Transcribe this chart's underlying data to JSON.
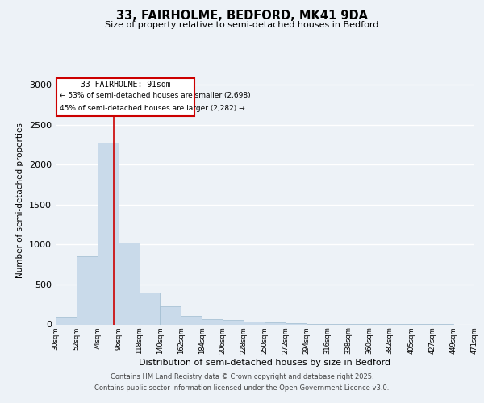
{
  "title_line1": "33, FAIRHOLME, BEDFORD, MK41 9DA",
  "title_line2": "Size of property relative to semi-detached houses in Bedford",
  "xlabel": "Distribution of semi-detached houses by size in Bedford",
  "ylabel": "Number of semi-detached properties",
  "annotation_line1": "33 FAIRHOLME: 91sqm",
  "annotation_line2": "← 53% of semi-detached houses are smaller (2,698)",
  "annotation_line3": "45% of semi-detached houses are larger (2,282) →",
  "property_size": 91,
  "bin_edges": [
    30,
    52,
    74,
    96,
    118,
    140,
    162,
    184,
    206,
    228,
    250,
    272,
    294,
    316,
    338,
    360,
    382,
    405,
    427,
    449,
    471
  ],
  "bin_labels": [
    "30sqm",
    "52sqm",
    "74sqm",
    "96sqm",
    "118sqm",
    "140sqm",
    "162sqm",
    "184sqm",
    "206sqm",
    "228sqm",
    "250sqm",
    "272sqm",
    "294sqm",
    "316sqm",
    "338sqm",
    "360sqm",
    "382sqm",
    "405sqm",
    "427sqm",
    "449sqm",
    "471sqm"
  ],
  "counts": [
    100,
    850,
    2270,
    1020,
    400,
    230,
    110,
    70,
    55,
    35,
    25,
    15,
    10,
    5,
    5,
    3,
    2,
    1,
    1,
    0
  ],
  "bar_color": "#c9daea",
  "bar_edge_color": "#a0bcd0",
  "vline_color": "#cc0000",
  "vline_x": 91,
  "ylim": [
    0,
    3100
  ],
  "yticks": [
    0,
    500,
    1000,
    1500,
    2000,
    2500,
    3000
  ],
  "bg_color": "#edf2f7",
  "plot_bg_color": "#edf2f7",
  "grid_color": "#ffffff",
  "footer_line1": "Contains HM Land Registry data © Crown copyright and database right 2025.",
  "footer_line2": "Contains public sector information licensed under the Open Government Licence v3.0."
}
